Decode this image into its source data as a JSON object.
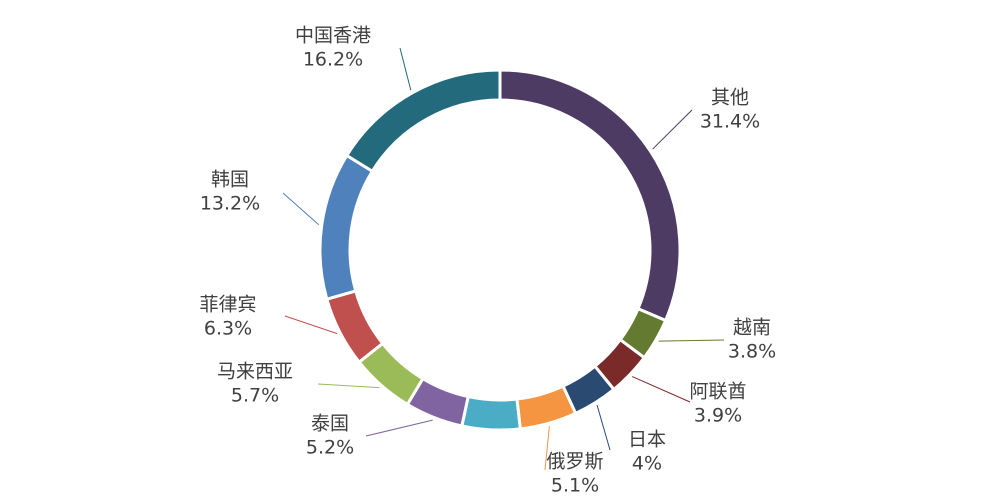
{
  "chart_data": {
    "type": "donut",
    "categories": [
      "其他",
      "越南",
      "阿联酋",
      "日本",
      "俄罗斯",
      null,
      "泰国",
      "马来西亚",
      "菲律宾",
      "韩国",
      "中国香港"
    ],
    "values": [
      31.4,
      3.8,
      3.9,
      4,
      5.1,
      5.2,
      5.2,
      5.7,
      6.3,
      13.2,
      16.2
    ],
    "value_labels": [
      "31.4%",
      "3.8%",
      "3.9%",
      "4%",
      "5.1%",
      null,
      "5.2%",
      "5.7%",
      "6.3%",
      "13.2%",
      "16.2%"
    ],
    "colors": [
      "#4e3b63",
      "#647a30",
      "#7b2a2a",
      "#2a4a72",
      "#f59541",
      "#4bacc6",
      "#8064a2",
      "#9bbb59",
      "#c0504d",
      "#4f81bd",
      "#226a7c"
    ]
  }
}
